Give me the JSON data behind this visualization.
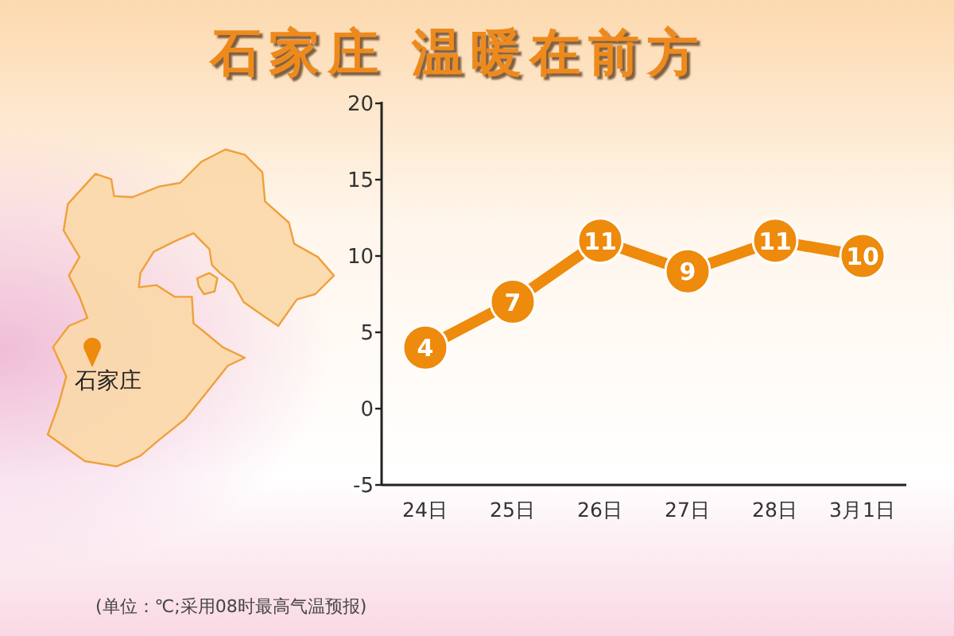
{
  "chart_data": {
    "type": "line",
    "title": "石家庄 温暖在前方",
    "categories": [
      "24日",
      "25日",
      "26日",
      "27日",
      "28日",
      "3月1日"
    ],
    "series": [
      {
        "color": "#ee8a0c",
        "values": [
          4,
          7,
          11,
          9,
          11,
          10
        ]
      }
    ],
    "ylim": [
      -5,
      20
    ],
    "yticks": [
      -5,
      0,
      5,
      10,
      15,
      20
    ],
    "data_labels": true,
    "marker": "circle",
    "annotations": [
      "石家庄",
      "(单位：℃;采用08时最高气温预报)"
    ]
  }
}
